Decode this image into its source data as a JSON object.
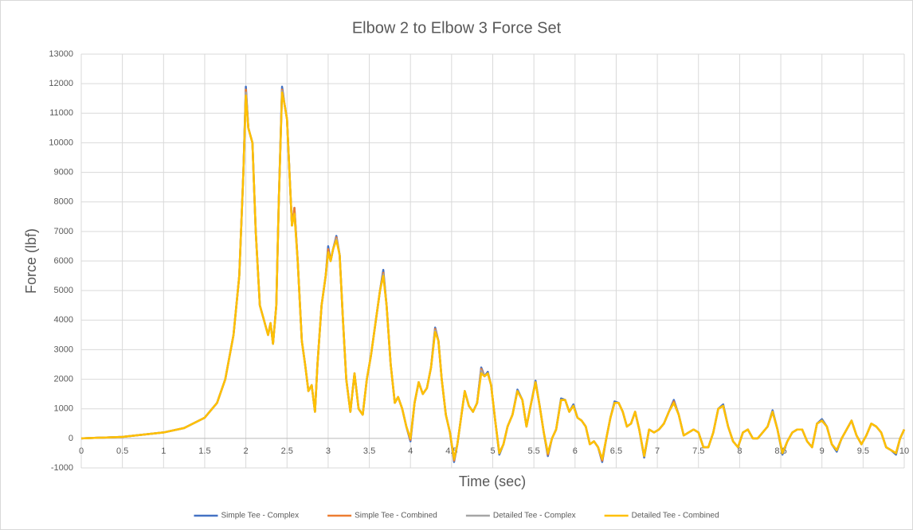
{
  "chart_data": {
    "type": "line",
    "title": "Elbow 2 to Elbow 3 Force Set",
    "x_label": "Time (sec)",
    "y_label": "Force (lbf)",
    "xlim": [
      0,
      10
    ],
    "xticks": [
      0,
      0.5,
      1,
      1.5,
      2,
      2.5,
      3,
      3.5,
      4,
      4.5,
      5,
      5.5,
      6,
      6.5,
      7,
      7.5,
      8,
      8.5,
      9,
      9.5,
      10
    ],
    "ylim": [
      -1000,
      13000
    ],
    "yticks": [
      -1000,
      0,
      1000,
      2000,
      3000,
      4000,
      5000,
      6000,
      7000,
      8000,
      9000,
      10000,
      11000,
      12000,
      13000
    ],
    "grid": true,
    "legend": "bottom",
    "x": [
      0,
      0.5,
      1,
      1.25,
      1.5,
      1.65,
      1.75,
      1.85,
      1.92,
      1.97,
      2.0,
      2.03,
      2.08,
      2.12,
      2.17,
      2.22,
      2.27,
      2.3,
      2.33,
      2.37,
      2.4,
      2.44,
      2.47,
      2.5,
      2.53,
      2.56,
      2.59,
      2.63,
      2.68,
      2.72,
      2.76,
      2.8,
      2.84,
      2.87,
      2.92,
      2.97,
      3.0,
      3.03,
      3.06,
      3.1,
      3.14,
      3.18,
      3.22,
      3.27,
      3.32,
      3.37,
      3.42,
      3.47,
      3.52,
      3.58,
      3.63,
      3.67,
      3.71,
      3.76,
      3.81,
      3.85,
      3.9,
      3.95,
      4.0,
      4.05,
      4.1,
      4.15,
      4.2,
      4.25,
      4.3,
      4.34,
      4.38,
      4.43,
      4.48,
      4.53,
      4.57,
      4.62,
      4.66,
      4.71,
      4.76,
      4.81,
      4.86,
      4.9,
      4.94,
      4.98,
      5.03,
      5.08,
      5.13,
      5.18,
      5.24,
      5.3,
      5.36,
      5.41,
      5.46,
      5.52,
      5.57,
      5.62,
      5.67,
      5.72,
      5.77,
      5.83,
      5.88,
      5.93,
      5.98,
      6.03,
      6.08,
      6.13,
      6.18,
      6.23,
      6.28,
      6.33,
      6.38,
      6.43,
      6.48,
      6.53,
      6.58,
      6.63,
      6.68,
      6.73,
      6.78,
      6.84,
      6.9,
      6.96,
      7.02,
      7.08,
      7.14,
      7.2,
      7.26,
      7.32,
      7.38,
      7.44,
      7.5,
      7.56,
      7.62,
      7.68,
      7.74,
      7.8,
      7.86,
      7.92,
      7.98,
      8.04,
      8.1,
      8.16,
      8.22,
      8.28,
      8.34,
      8.4,
      8.46,
      8.52,
      8.58,
      8.64,
      8.7,
      8.76,
      8.82,
      8.88,
      8.94,
      9.0,
      9.06,
      9.12,
      9.18,
      9.24,
      9.3,
      9.36,
      9.42,
      9.48,
      9.54,
      9.6,
      9.66,
      9.72,
      9.78,
      9.84,
      9.9,
      9.95,
      10
    ],
    "series": [
      {
        "name": "Simple Tee - Complex",
        "color": "#4472c4",
        "values": [
          0,
          50,
          200,
          350,
          700,
          1200,
          2000,
          3500,
          5500,
          9000,
          11900,
          10500,
          10000,
          7000,
          4500,
          4000,
          3500,
          3900,
          3200,
          4500,
          8000,
          11900,
          11300,
          10800,
          9000,
          7200,
          7800,
          6000,
          3300,
          2500,
          1600,
          1800,
          900,
          2500,
          4500,
          5500,
          6500,
          6000,
          6400,
          6850,
          6200,
          4000,
          2000,
          900,
          2200,
          1000,
          800,
          2000,
          2800,
          4000,
          5000,
          5700,
          4500,
          2500,
          1200,
          1400,
          1000,
          400,
          -100,
          1200,
          1900,
          1500,
          1700,
          2400,
          3750,
          3300,
          2000,
          800,
          200,
          -800,
          -200,
          800,
          1600,
          1100,
          900,
          1200,
          2400,
          2100,
          2250,
          1800,
          600,
          -550,
          -200,
          400,
          800,
          1650,
          1300,
          400,
          1100,
          1950,
          1100,
          200,
          -600,
          0,
          300,
          1350,
          1300,
          900,
          1150,
          700,
          600,
          400,
          -200,
          -100,
          -300,
          -800,
          0,
          700,
          1250,
          1200,
          900,
          400,
          500,
          900,
          300,
          -650,
          300,
          200,
          300,
          500,
          900,
          1300,
          800,
          100,
          200,
          300,
          200,
          -300,
          -300,
          200,
          1000,
          1150,
          400,
          -100,
          -300,
          200,
          300,
          0,
          0,
          200,
          400,
          950,
          300,
          -550,
          -100,
          200,
          300,
          300,
          -100,
          -300,
          500,
          650,
          400,
          -200,
          -450,
          0,
          300,
          600,
          100,
          -200,
          100,
          500,
          400,
          200,
          -300,
          -400,
          -550,
          0,
          300
        ]
      },
      {
        "name": "Simple Tee - Combined",
        "color": "#ed7d31",
        "values": [
          0,
          50,
          200,
          350,
          700,
          1200,
          2000,
          3500,
          5500,
          9000,
          11800,
          10500,
          10000,
          7000,
          4500,
          4000,
          3500,
          3900,
          3200,
          4500,
          8000,
          11800,
          11300,
          10800,
          9000,
          7200,
          7800,
          6000,
          3300,
          2500,
          1600,
          1800,
          900,
          2500,
          4500,
          5500,
          6400,
          6000,
          6400,
          6800,
          6200,
          4000,
          2000,
          900,
          2200,
          1000,
          800,
          2000,
          2800,
          4000,
          5000,
          5600,
          4500,
          2500,
          1200,
          1400,
          1000,
          400,
          -50,
          1200,
          1900,
          1500,
          1700,
          2400,
          3700,
          3300,
          2000,
          800,
          200,
          -750,
          -200,
          800,
          1600,
          1100,
          900,
          1200,
          2350,
          2100,
          2200,
          1800,
          600,
          -500,
          -200,
          400,
          800,
          1600,
          1300,
          400,
          1100,
          1900,
          1100,
          200,
          -550,
          0,
          300,
          1300,
          1300,
          900,
          1100,
          700,
          600,
          400,
          -200,
          -100,
          -300,
          -750,
          0,
          700,
          1200,
          1200,
          900,
          400,
          500,
          900,
          300,
          -600,
          300,
          200,
          300,
          500,
          900,
          1250,
          800,
          100,
          200,
          300,
          200,
          -300,
          -300,
          200,
          1000,
          1100,
          400,
          -100,
          -300,
          200,
          300,
          0,
          0,
          200,
          400,
          900,
          300,
          -500,
          -100,
          200,
          300,
          300,
          -100,
          -300,
          500,
          600,
          400,
          -200,
          -400,
          0,
          300,
          600,
          100,
          -200,
          100,
          500,
          400,
          200,
          -300,
          -400,
          -500,
          0,
          300
        ]
      },
      {
        "name": "Detailed Tee - Complex",
        "color": "#a5a5a5",
        "values": [
          0,
          50,
          200,
          350,
          700,
          1200,
          2000,
          3500,
          5500,
          9000,
          11700,
          10500,
          10000,
          7000,
          4500,
          4000,
          3500,
          3900,
          3200,
          4500,
          8000,
          11750,
          11300,
          10800,
          9000,
          7200,
          7600,
          6000,
          3300,
          2500,
          1600,
          1800,
          900,
          2500,
          4500,
          5500,
          6300,
          6000,
          6400,
          6750,
          6200,
          4000,
          2000,
          900,
          2200,
          1000,
          800,
          2000,
          2800,
          4000,
          5000,
          5550,
          4500,
          2500,
          1200,
          1400,
          1000,
          400,
          0,
          1200,
          1900,
          1500,
          1700,
          2400,
          3650,
          3300,
          2000,
          800,
          200,
          -700,
          -200,
          800,
          1600,
          1100,
          900,
          1200,
          2300,
          2100,
          2200,
          1800,
          600,
          -500,
          -200,
          400,
          800,
          1600,
          1300,
          400,
          1100,
          1900,
          1100,
          200,
          -500,
          0,
          300,
          1300,
          1300,
          900,
          1100,
          700,
          600,
          400,
          -200,
          -100,
          -300,
          -700,
          0,
          700,
          1200,
          1200,
          900,
          400,
          500,
          900,
          300,
          -600,
          300,
          200,
          300,
          500,
          900,
          1200,
          800,
          100,
          200,
          300,
          200,
          -300,
          -300,
          200,
          1000,
          1100,
          400,
          -100,
          -300,
          200,
          300,
          0,
          0,
          200,
          400,
          900,
          300,
          -500,
          -100,
          200,
          300,
          300,
          -100,
          -300,
          500,
          600,
          400,
          -200,
          -400,
          0,
          300,
          600,
          100,
          -200,
          100,
          500,
          400,
          200,
          -300,
          -400,
          -500,
          0,
          300
        ]
      },
      {
        "name": "Detailed Tee - Combined",
        "color": "#ffc000",
        "values": [
          0,
          50,
          200,
          350,
          700,
          1200,
          2000,
          3500,
          5500,
          9000,
          11600,
          10500,
          10000,
          7000,
          4500,
          4000,
          3500,
          3900,
          3200,
          4500,
          8000,
          11700,
          11300,
          10800,
          9000,
          7200,
          7600,
          6000,
          3300,
          2500,
          1600,
          1800,
          900,
          2500,
          4500,
          5500,
          6300,
          6000,
          6400,
          6700,
          6200,
          4000,
          2000,
          900,
          2200,
          1000,
          800,
          2000,
          2800,
          4000,
          5000,
          5500,
          4500,
          2500,
          1200,
          1400,
          1000,
          400,
          0,
          1200,
          1900,
          1500,
          1700,
          2400,
          3600,
          3300,
          2000,
          800,
          200,
          -700,
          -200,
          800,
          1600,
          1100,
          900,
          1200,
          2200,
          2100,
          2200,
          1800,
          600,
          -500,
          -200,
          400,
          800,
          1600,
          1300,
          400,
          1100,
          1900,
          1100,
          200,
          -500,
          0,
          300,
          1300,
          1300,
          900,
          1100,
          700,
          600,
          400,
          -200,
          -100,
          -300,
          -700,
          0,
          700,
          1200,
          1200,
          900,
          400,
          500,
          900,
          300,
          -600,
          300,
          200,
          300,
          500,
          900,
          1200,
          800,
          100,
          200,
          300,
          200,
          -300,
          -300,
          200,
          1000,
          1100,
          400,
          -100,
          -300,
          200,
          300,
          0,
          0,
          200,
          400,
          900,
          300,
          -500,
          -100,
          200,
          300,
          300,
          -100,
          -300,
          500,
          600,
          400,
          -200,
          -400,
          0,
          300,
          600,
          100,
          -200,
          100,
          500,
          400,
          200,
          -300,
          -400,
          -500,
          0,
          300
        ]
      }
    ]
  }
}
